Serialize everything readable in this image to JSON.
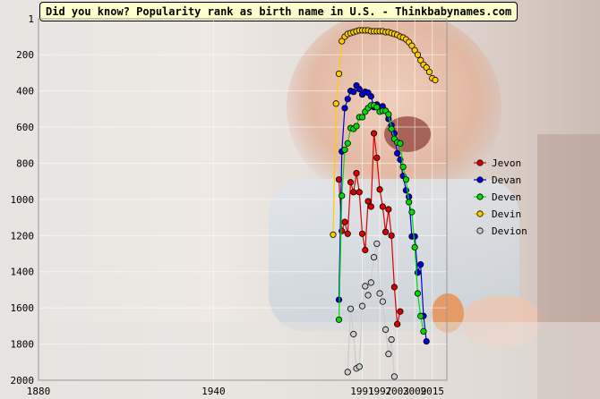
{
  "chart_data": {
    "type": "line",
    "title": "Did you know? Popularity rank as birth name in U.S. - Thinkbabynames.com",
    "xlabel": "",
    "ylabel": "",
    "xlim": [
      1880,
      2020
    ],
    "ylim": [
      2000,
      1
    ],
    "y_inverted": true,
    "grid": true,
    "legend_position": "right",
    "x_ticks": [
      1880,
      1940,
      1991,
      1997,
      2003,
      2009,
      2015
    ],
    "y_ticks": [
      1,
      200,
      400,
      600,
      800,
      1000,
      1200,
      1400,
      1600,
      1800,
      2000
    ],
    "series": [
      {
        "name": "Jevon",
        "color": "#dd0000",
        "x": [
          1983,
          1984,
          1985,
          1986,
          1987,
          1988,
          1989,
          1990,
          1991,
          1992,
          1993,
          1994,
          1995,
          1996,
          1997,
          1998,
          1999,
          2000,
          2001,
          2002,
          2003,
          2004,
          2005,
          2006,
          2007
        ],
        "y": [
          890,
          1175,
          1125,
          1190,
          905,
          960,
          855,
          960,
          1190,
          1280,
          1010,
          1040,
          635,
          770,
          945,
          1040,
          1180,
          1055,
          1200,
          1485,
          1690,
          1620,
          null,
          null,
          null
        ]
      },
      {
        "name": "Devan",
        "color": "#0000dd",
        "x": [
          1983,
          1984,
          1985,
          1986,
          1987,
          1988,
          1989,
          1990,
          1991,
          1992,
          1993,
          1994,
          1995,
          1996,
          1997,
          1998,
          1999,
          2000,
          2001,
          2002,
          2003,
          2004,
          2005,
          2006,
          2007,
          2008,
          2009,
          2010,
          2011,
          2012,
          2013,
          2014,
          2015,
          2016,
          2017
        ],
        "y": [
          1555,
          735,
          495,
          445,
          400,
          405,
          370,
          390,
          420,
          405,
          410,
          430,
          490,
          475,
          510,
          485,
          510,
          555,
          590,
          635,
          745,
          780,
          870,
          950,
          985,
          1205,
          1205,
          1405,
          1360,
          1645,
          1785,
          null,
          null,
          null,
          null
        ]
      },
      {
        "name": "Deven",
        "color": "#00dd00",
        "x": [
          1983,
          1984,
          1985,
          1986,
          1987,
          1988,
          1989,
          1990,
          1991,
          1992,
          1993,
          1994,
          1995,
          1996,
          1997,
          1998,
          1999,
          2000,
          2001,
          2002,
          2003,
          2004,
          2005,
          2006,
          2007,
          2008,
          2009,
          2010,
          2011,
          2012,
          2013,
          2014,
          2015,
          2016,
          2017
        ],
        "y": [
          1665,
          980,
          725,
          690,
          605,
          610,
          595,
          545,
          545,
          515,
          495,
          480,
          480,
          490,
          515,
          510,
          510,
          530,
          610,
          665,
          685,
          690,
          820,
          890,
          1015,
          1070,
          1265,
          1520,
          1645,
          1730,
          null,
          null,
          null,
          null,
          null
        ]
      },
      {
        "name": "Devin",
        "color": "#ffcc00",
        "x": [
          1981,
          1982,
          1983,
          1984,
          1985,
          1986,
          1987,
          1988,
          1989,
          1990,
          1991,
          1992,
          1993,
          1994,
          1995,
          1996,
          1997,
          1998,
          1999,
          2000,
          2001,
          2002,
          2003,
          2004,
          2005,
          2006,
          2007,
          2008,
          2009,
          2010,
          2011,
          2012,
          2013,
          2014,
          2015,
          2016,
          2017
        ],
        "y": [
          1195,
          470,
          305,
          125,
          100,
          85,
          80,
          75,
          70,
          65,
          65,
          65,
          65,
          70,
          70,
          70,
          70,
          70,
          75,
          75,
          80,
          85,
          90,
          100,
          105,
          115,
          130,
          150,
          175,
          200,
          230,
          255,
          270,
          295,
          330,
          340,
          null
        ]
      },
      {
        "name": "Devion",
        "color": "#cccccc",
        "x": [
          1986,
          1987,
          1988,
          1989,
          1990,
          1991,
          1992,
          1993,
          1994,
          1995,
          1996,
          1997,
          1998,
          1999,
          2000,
          2001,
          2002,
          2003
        ],
        "y": [
          1955,
          1605,
          1745,
          1935,
          1925,
          1590,
          1480,
          1530,
          1460,
          1320,
          1245,
          1520,
          1565,
          1720,
          1855,
          1775,
          1980,
          null
        ]
      }
    ]
  }
}
